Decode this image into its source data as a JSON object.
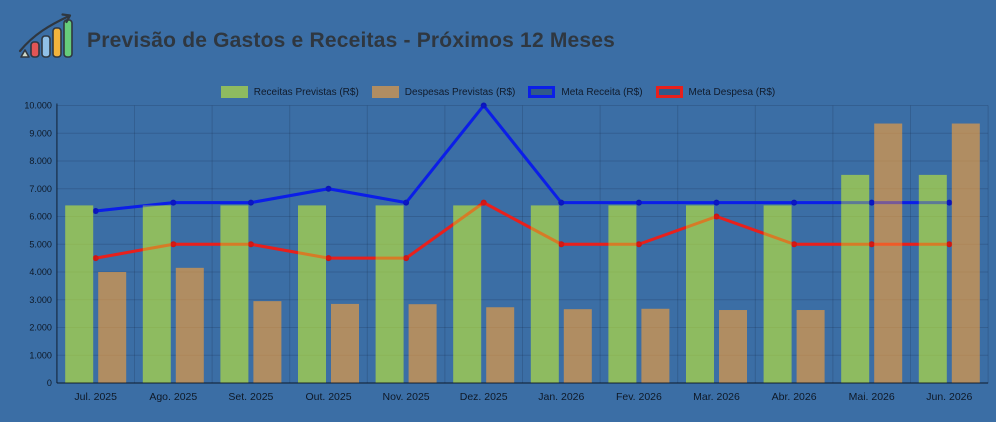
{
  "header": {
    "title": "Previsão de Gastos e Receitas - Próximos 12 Meses"
  },
  "colors": {
    "background": "#3B6EA5",
    "title_text": "#2F3740",
    "tick_text": "#0E1826",
    "grid": "rgba(12,26,48,0.17)",
    "axis": "rgba(8,16,30,0.55)"
  },
  "chart_data": {
    "type": "bar+line",
    "title": "Previsão de Gastos e Receitas - Próximos 12 Meses",
    "categories": [
      "Jul. 2025",
      "Ago. 2025",
      "Set. 2025",
      "Out. 2025",
      "Nov. 2025",
      "Dez. 2025",
      "Jan. 2026",
      "Fev. 2026",
      "Mar. 2026",
      "Abr. 2026",
      "Mai. 2026",
      "Jun. 2026"
    ],
    "series": [
      {
        "name": "Receitas Previstas (R$)",
        "type": "bar",
        "color": "#C1EA36",
        "opacity": 0.62,
        "values": [
          6400,
          6400,
          6400,
          6400,
          6400,
          6400,
          6400,
          6400,
          6400,
          6400,
          7500,
          7500
        ]
      },
      {
        "name": "Despesas Previstas (R$)",
        "type": "bar",
        "color": "#F8A039",
        "opacity": 0.62,
        "values": [
          4000,
          4150,
          2950,
          2850,
          2840,
          2730,
          2660,
          2675,
          2630,
          2630,
          9350,
          9350
        ]
      },
      {
        "name": "Meta Receita (R$)",
        "type": "line",
        "color": "#0B1FE8",
        "marker_color": "#0A14B8",
        "values": [
          6200,
          6500,
          6500,
          7000,
          6500,
          10000,
          6500,
          6500,
          6500,
          6500,
          6500,
          6500
        ]
      },
      {
        "name": "Meta Despesa (R$)",
        "type": "line",
        "color": "#E8201C",
        "marker_color": "#CC1512",
        "values": [
          4500,
          5000,
          5000,
          4500,
          4500,
          6500,
          5000,
          5000,
          6000,
          5000,
          5000,
          5000
        ]
      }
    ],
    "ylim": [
      0,
      10000
    ],
    "y_ticks": [
      "0",
      "1.000",
      "2.000",
      "3.000",
      "4.000",
      "5.000",
      "6.000",
      "7.000",
      "8.000",
      "9.000",
      "10.000"
    ],
    "grid": true,
    "legend_position": "top"
  }
}
